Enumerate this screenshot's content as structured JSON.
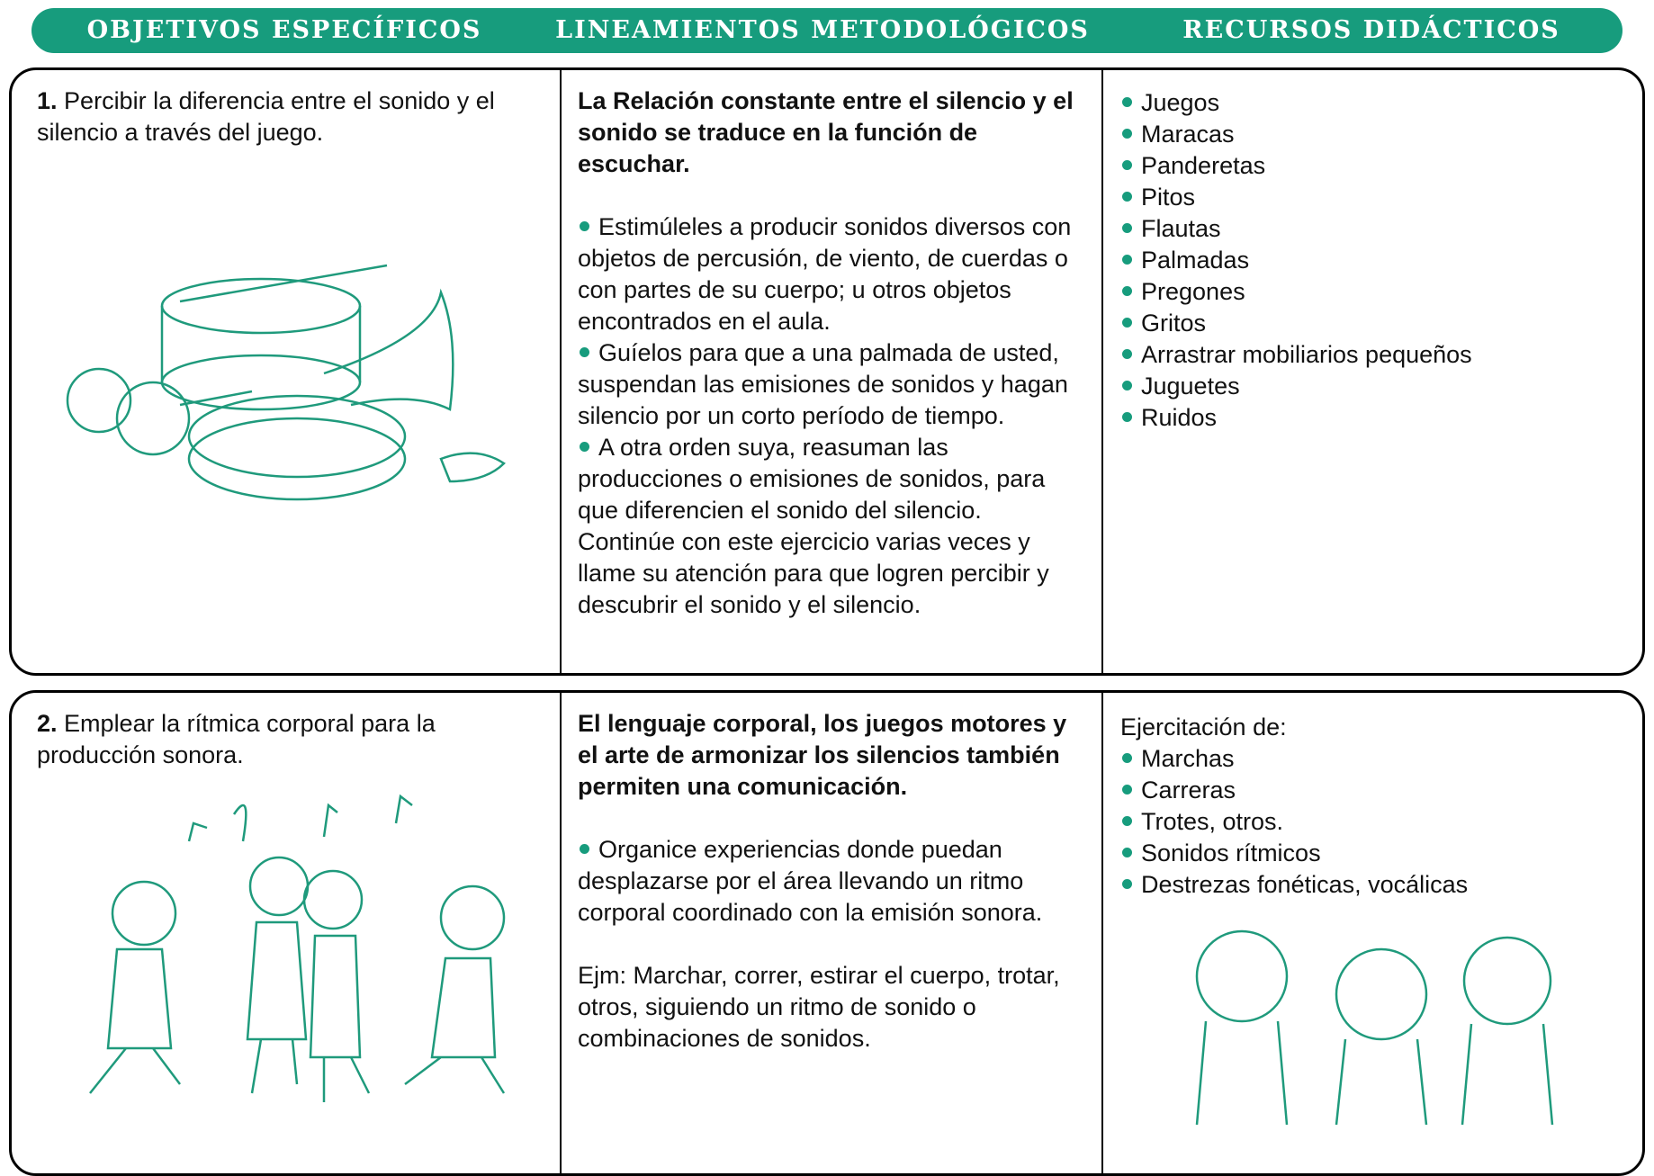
{
  "header": {
    "columns": [
      "OBJETIVOS ESPECÍFICOS",
      "LINEAMIENTOS METODOLÓGICOS",
      "RECURSOS DIDÁCTICOS"
    ]
  },
  "rows": [
    {
      "number": "1.",
      "objective": "Percibir la diferencia entre el sonido y el silencio a través del juego.",
      "method_heading": "La Relación constante entre el silencio y el sonido se traduce en la función de escuchar.",
      "method_bullets": [
        "Estimúleles a producir sonidos diversos con objetos de percusión, de viento, de cuerdas o con partes de su cuerpo; u otros objetos encontrados en el aula.",
        "Guíelos para que a una palmada de usted, suspendan las emisiones de sonidos y hagan silencio por un corto período de tiempo.",
        "A otra orden suya, reasuman las producciones o emisiones de sonidos, para que diferencien el sonido del silencio. Continúe con este ejercicio varias veces y llame su atención para que logren percibir y descubrir el sonido y el silencio."
      ],
      "resources": [
        "Juegos",
        "Maracas",
        "Panderetas",
        "Pitos",
        "Flautas",
        "Palmadas",
        "Pregones",
        "Gritos",
        "Arrastrar mobiliarios pequeños",
        "Juguetes",
        "Ruidos"
      ]
    },
    {
      "number": "2.",
      "objective": "Emplear la rítmica corporal para la producción sonora.",
      "method_heading": "El lenguaje corporal, los juegos motores y el arte de armonizar los silencios también permiten una comunicación.",
      "method_bullets": [
        "Organice experiencias donde puedan desplazarse por el área llevando un ritmo corporal coordinado con la emisión sonora."
      ],
      "method_note": "Ejm: Marchar, correr, estirar el cuerpo, trotar, otros, siguiendo un ritmo de sonido o combinaciones de sonidos.",
      "resources_intro": "Ejercitación de:",
      "resources": [
        "Marchas",
        "Carreras",
        "Trotes, otros.",
        "Sonidos rítmicos",
        "Destrezas fonéticas, vocálicas"
      ]
    }
  ]
}
